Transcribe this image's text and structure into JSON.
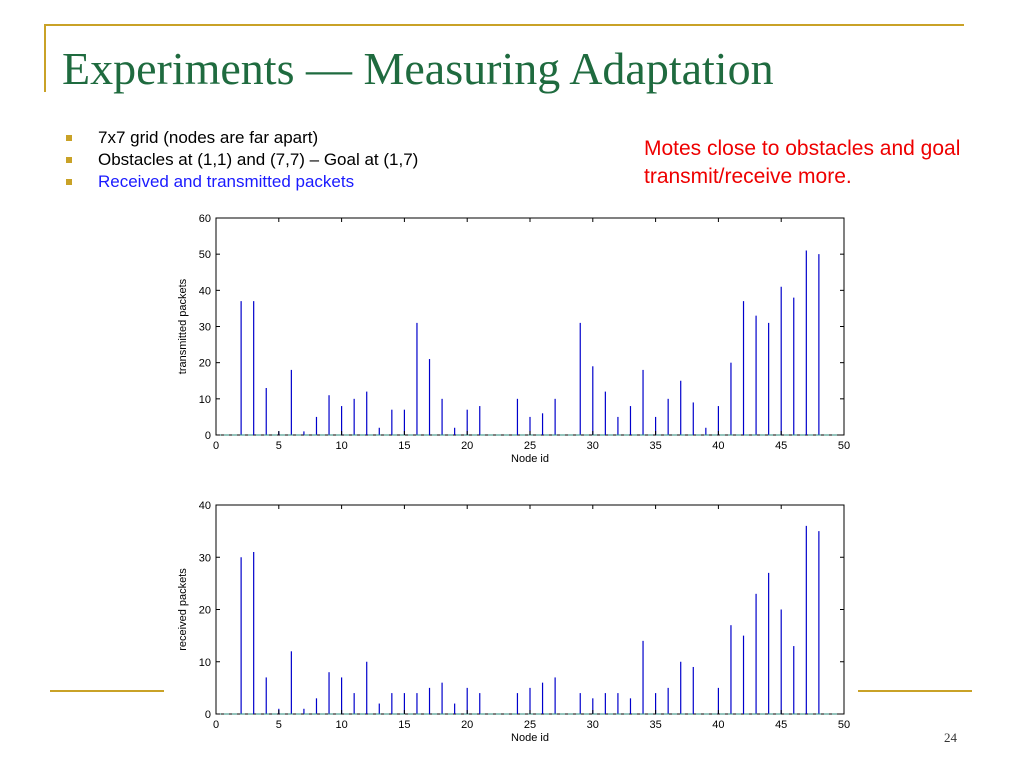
{
  "slide": {
    "title": "Experiments — Measuring Adaptation",
    "bullets": [
      {
        "text": "7x7 grid (nodes are far apart)",
        "color": "#000000"
      },
      {
        "text": "Obstacles at (1,1) and (7,7) – Goal at (1,7)",
        "color": "#000000"
      },
      {
        "text": "Received and transmitted packets",
        "color": "#1a1aff"
      }
    ],
    "note": "Motes close to obstacles and goal transmit/receive more.",
    "page_number": "24",
    "accent_color": "#c9a227",
    "title_color": "#1f6b3f",
    "note_color": "#ee0000"
  },
  "chart_data": [
    {
      "type": "bar",
      "xlabel": "Node id",
      "ylabel": "transmitted packets",
      "xlim": [
        0,
        50
      ],
      "ylim": [
        0,
        60
      ],
      "xticks": [
        0,
        5,
        10,
        15,
        20,
        25,
        30,
        35,
        40,
        45,
        50
      ],
      "yticks": [
        0,
        10,
        20,
        30,
        40,
        50,
        60
      ],
      "bar_color": "#0000cc",
      "x": [
        1,
        2,
        3,
        4,
        5,
        6,
        7,
        8,
        9,
        10,
        11,
        12,
        13,
        14,
        15,
        16,
        17,
        18,
        19,
        20,
        21,
        22,
        23,
        24,
        25,
        26,
        27,
        28,
        29,
        30,
        31,
        32,
        33,
        34,
        35,
        36,
        37,
        38,
        39,
        40,
        41,
        42,
        43,
        44,
        45,
        46,
        47,
        48,
        49
      ],
      "values": [
        0,
        37,
        37,
        13,
        1,
        18,
        1,
        5,
        11,
        8,
        10,
        12,
        2,
        7,
        7,
        31,
        21,
        10,
        2,
        7,
        8,
        0,
        0,
        10,
        5,
        6,
        10,
        0,
        31,
        19,
        12,
        5,
        8,
        18,
        5,
        10,
        15,
        9,
        2,
        8,
        20,
        37,
        33,
        31,
        41,
        38,
        51,
        50,
        0
      ]
    },
    {
      "type": "bar",
      "xlabel": "Node id",
      "ylabel": "received packets",
      "xlim": [
        0,
        50
      ],
      "ylim": [
        0,
        40
      ],
      "xticks": [
        0,
        5,
        10,
        15,
        20,
        25,
        30,
        35,
        40,
        45,
        50
      ],
      "yticks": [
        0,
        10,
        20,
        30,
        40
      ],
      "bar_color": "#0000cc",
      "x": [
        1,
        2,
        3,
        4,
        5,
        6,
        7,
        8,
        9,
        10,
        11,
        12,
        13,
        14,
        15,
        16,
        17,
        18,
        19,
        20,
        21,
        22,
        23,
        24,
        25,
        26,
        27,
        28,
        29,
        30,
        31,
        32,
        33,
        34,
        35,
        36,
        37,
        38,
        39,
        40,
        41,
        42,
        43,
        44,
        45,
        46,
        47,
        48,
        49
      ],
      "values": [
        0,
        30,
        31,
        7,
        1,
        12,
        1,
        3,
        8,
        7,
        4,
        10,
        2,
        4,
        4,
        4,
        5,
        6,
        2,
        5,
        4,
        0,
        0,
        4,
        5,
        6,
        7,
        0,
        4,
        3,
        4,
        4,
        3,
        14,
        4,
        5,
        10,
        9,
        0,
        5,
        17,
        15,
        23,
        27,
        20,
        13,
        36,
        35,
        0
      ]
    }
  ]
}
